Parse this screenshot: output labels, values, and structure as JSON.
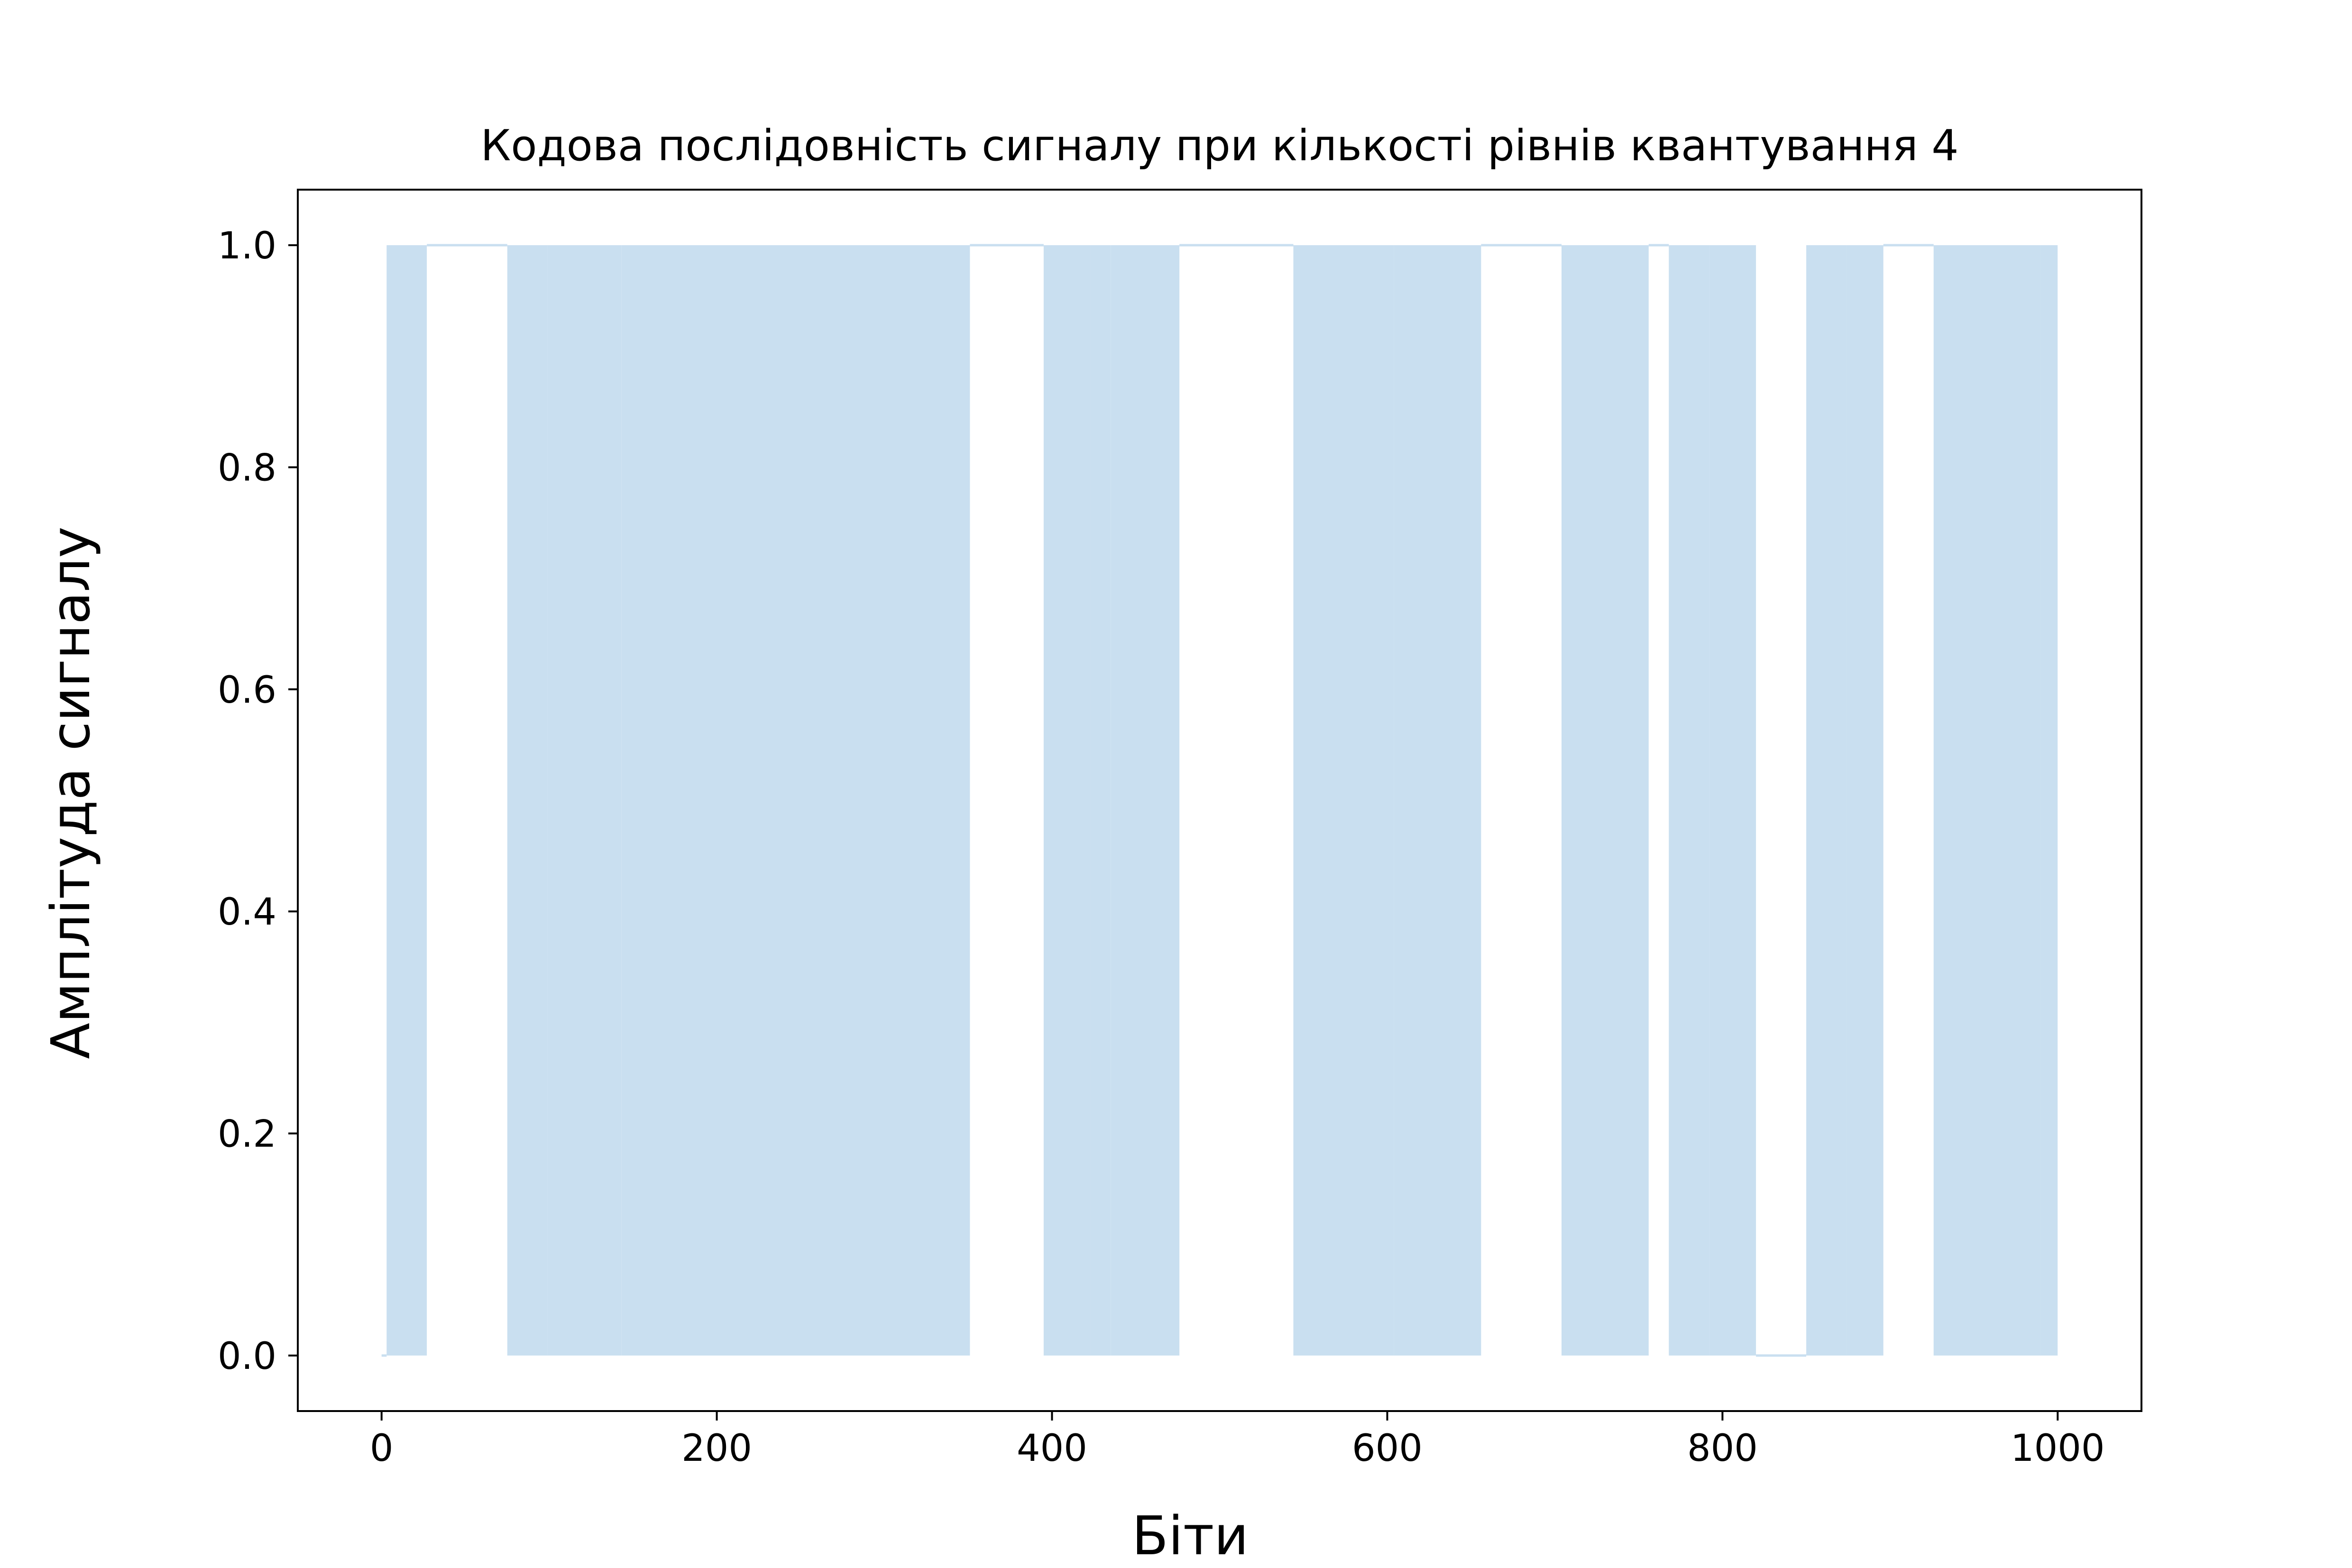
{
  "chart_data": {
    "type": "area",
    "title": "Кодова послідовність сигналу при кількості рівнів квантування 4",
    "xlabel": "Біти",
    "ylabel": "Амплітуда сигналу",
    "xlim": [
      -50,
      1050
    ],
    "ylim": [
      -0.05,
      1.05
    ],
    "x_ticks": [
      0,
      200,
      400,
      600,
      800,
      1000
    ],
    "x_tick_labels": [
      "0",
      "200",
      "400",
      "600",
      "800",
      "1000"
    ],
    "y_ticks": [
      0.0,
      0.2,
      0.4,
      0.6,
      0.8,
      1.0
    ],
    "y_tick_labels": [
      "0.0",
      "0.2",
      "0.4",
      "0.6",
      "0.8",
      "1.0"
    ],
    "grid": false,
    "fill_color": "#c9dff0",
    "step_line_color": "#c9dff0",
    "spine_color": "#000000",
    "baseline_value": 0,
    "high_value": 1,
    "high_intervals": [
      [
        3,
        27
      ],
      [
        75,
        99
      ],
      [
        99,
        143
      ],
      [
        143,
        351
      ],
      [
        395,
        423
      ],
      [
        423,
        435
      ],
      [
        435,
        476
      ],
      [
        544,
        572
      ],
      [
        572,
        604
      ],
      [
        604,
        656
      ],
      [
        704,
        756
      ],
      [
        768,
        792
      ],
      [
        792,
        820
      ],
      [
        850,
        874
      ],
      [
        874,
        896
      ],
      [
        926,
        990
      ],
      [
        990,
        1000
      ]
    ],
    "unfilled_high_gaps": [
      [
        27,
        75
      ],
      [
        351,
        395
      ],
      [
        476,
        544
      ],
      [
        656,
        704
      ],
      [
        756,
        768
      ],
      [
        896,
        926
      ]
    ],
    "low_gaps": [
      [
        820,
        850
      ]
    ]
  }
}
